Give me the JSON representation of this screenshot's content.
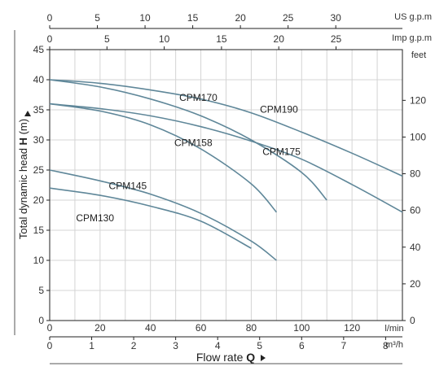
{
  "chart_data": {
    "type": "line",
    "xlabel_main": "Flow rate",
    "xlabel_main_symbol": "Q",
    "ylabel_left": "Total dynamic head",
    "ylabel_left_symbol": "H",
    "ylabel_left_unit": "(m)",
    "ylabel_right": "feet",
    "x_unit_lmin": "l/min",
    "x_unit_m3h": "m³/h",
    "top_axis_us_label": "US g.p.m",
    "top_axis_imp_label": "Imp g.p.m",
    "xlim": [
      0,
      140
    ],
    "ylim": [
      0,
      45
    ],
    "grid": true,
    "x_ticks_lmin": [
      0,
      20,
      40,
      60,
      80,
      100,
      120
    ],
    "x_ticks_m3h": [
      0,
      1,
      2,
      3,
      4,
      5,
      6,
      7,
      8
    ],
    "x_ticks_us_gpm": [
      0,
      5,
      10,
      15,
      20,
      25,
      30
    ],
    "x_ticks_imp_gpm": [
      0,
      5,
      10,
      15,
      20,
      25
    ],
    "y_ticks_m": [
      0,
      5,
      10,
      15,
      20,
      25,
      30,
      35,
      40,
      45
    ],
    "y_ticks_feet": [
      0,
      20,
      40,
      60,
      80,
      100,
      120
    ],
    "series": [
      {
        "name": "CPM190",
        "x": [
          0,
          20,
          40,
          60,
          80,
          100,
          120,
          140
        ],
        "y": [
          40,
          39.4,
          38.3,
          36.8,
          34.5,
          31.3,
          27.8,
          24.0
        ]
      },
      {
        "name": "CPM175",
        "x": [
          0,
          20,
          40,
          60,
          80,
          100,
          120,
          140
        ],
        "y": [
          36,
          35.2,
          34.0,
          32.2,
          29.8,
          26.8,
          22.6,
          18.0
        ]
      },
      {
        "name": "CPM170",
        "x": [
          0,
          20,
          40,
          60,
          80,
          100,
          110
        ],
        "y": [
          40,
          38.8,
          36.8,
          34.0,
          30.0,
          24.6,
          20.0
        ]
      },
      {
        "name": "CPM158",
        "x": [
          0,
          20,
          40,
          60,
          80,
          90
        ],
        "y": [
          36,
          34.8,
          32.5,
          28.5,
          22.7,
          18.0
        ]
      },
      {
        "name": "CPM145",
        "x": [
          0,
          20,
          40,
          60,
          80,
          90
        ],
        "y": [
          25,
          23.2,
          21.0,
          17.8,
          13.2,
          10.0
        ]
      },
      {
        "name": "CPM130",
        "x": [
          0,
          20,
          40,
          60,
          80
        ],
        "y": [
          22,
          20.8,
          19.0,
          16.5,
          12.0
        ]
      }
    ],
    "line_color": "#5f8799"
  }
}
